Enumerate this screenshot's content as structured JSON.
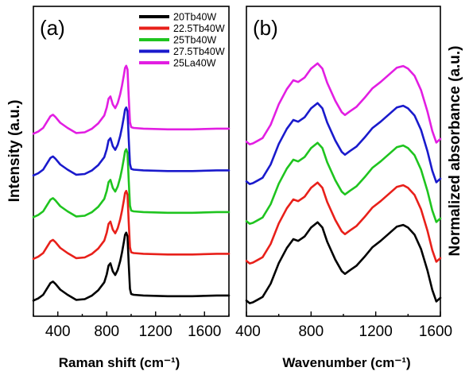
{
  "figure": {
    "ylabel_left": "Intensity (a.u.)",
    "ylabel_right": "Normalized absorbance (a.u.)"
  },
  "chart_data": [
    {
      "panel": "(a)",
      "type": "line",
      "xlabel": "Raman shift (cm⁻¹)",
      "xlim": [
        200,
        1800
      ],
      "xticks": [
        400,
        800,
        1200,
        1600
      ],
      "y_ticks_shown": false,
      "legend_position": "top-right",
      "series": [
        {
          "name": "20Tb40W",
          "color": "#000000",
          "offset": 0,
          "x": [
            200,
            240,
            280,
            310,
            340,
            360,
            380,
            420,
            480,
            550,
            620,
            680,
            730,
            780,
            800,
            815,
            830,
            850,
            870,
            890,
            910,
            925,
            940,
            950,
            960,
            970,
            980,
            990,
            1000,
            1020,
            1100,
            1300,
            1500,
            1700,
            1800
          ],
          "y": [
            4,
            7,
            12,
            20,
            28,
            30,
            27,
            19,
            12,
            5,
            6,
            11,
            18,
            29,
            40,
            52,
            55,
            44,
            39,
            46,
            58,
            70,
            84,
            94,
            97,
            92,
            55,
            20,
            13,
            12,
            11,
            10,
            10,
            11,
            11
          ]
        },
        {
          "name": "22.5Tb40W",
          "color": "#e8201a",
          "offset": 1,
          "x": [
            200,
            240,
            280,
            310,
            340,
            360,
            380,
            420,
            480,
            550,
            620,
            680,
            730,
            780,
            800,
            815,
            830,
            850,
            870,
            890,
            910,
            925,
            940,
            950,
            960,
            970,
            980,
            990,
            1000,
            1020,
            1100,
            1300,
            1500,
            1700,
            1800
          ],
          "y": [
            4,
            7,
            12,
            20,
            28,
            30,
            27,
            19,
            12,
            5,
            6,
            11,
            18,
            29,
            40,
            52,
            55,
            44,
            39,
            46,
            58,
            70,
            84,
            94,
            97,
            92,
            55,
            20,
            13,
            12,
            11,
            10,
            10,
            11,
            11
          ]
        },
        {
          "name": "25Tb40W",
          "color": "#1fc41f",
          "offset": 2,
          "x": [
            200,
            240,
            280,
            310,
            340,
            360,
            380,
            420,
            480,
            550,
            620,
            680,
            730,
            780,
            800,
            815,
            830,
            850,
            870,
            890,
            910,
            925,
            940,
            950,
            960,
            970,
            980,
            990,
            1000,
            1020,
            1100,
            1300,
            1500,
            1700,
            1800
          ],
          "y": [
            4,
            7,
            12,
            20,
            28,
            30,
            27,
            19,
            12,
            5,
            6,
            11,
            18,
            29,
            40,
            52,
            55,
            44,
            39,
            46,
            58,
            70,
            84,
            94,
            97,
            92,
            55,
            20,
            13,
            12,
            11,
            10,
            10,
            11,
            11
          ]
        },
        {
          "name": "27.5Tb40W",
          "color": "#1a1acc",
          "offset": 3,
          "x": [
            200,
            240,
            280,
            310,
            340,
            360,
            380,
            420,
            480,
            550,
            620,
            680,
            730,
            780,
            800,
            815,
            830,
            850,
            870,
            890,
            910,
            925,
            940,
            950,
            960,
            970,
            980,
            990,
            1000,
            1020,
            1100,
            1300,
            1500,
            1700,
            1800
          ],
          "y": [
            4,
            7,
            12,
            20,
            28,
            30,
            27,
            19,
            12,
            5,
            6,
            11,
            18,
            29,
            40,
            52,
            55,
            44,
            39,
            46,
            58,
            70,
            84,
            94,
            97,
            92,
            55,
            20,
            13,
            12,
            11,
            10,
            10,
            11,
            11
          ]
        },
        {
          "name": "25La40W",
          "color": "#e21ee2",
          "offset": 4,
          "x": [
            200,
            240,
            280,
            310,
            340,
            360,
            380,
            420,
            480,
            550,
            620,
            680,
            730,
            780,
            800,
            815,
            830,
            850,
            870,
            890,
            910,
            925,
            940,
            950,
            960,
            970,
            980,
            990,
            1000,
            1020,
            1100,
            1300,
            1500,
            1700,
            1800
          ],
          "y": [
            4,
            7,
            12,
            20,
            28,
            30,
            27,
            19,
            12,
            5,
            6,
            11,
            18,
            29,
            40,
            52,
            55,
            44,
            39,
            46,
            58,
            70,
            84,
            94,
            97,
            92,
            55,
            20,
            13,
            12,
            11,
            10,
            10,
            11,
            11
          ]
        }
      ]
    },
    {
      "panel": "(b)",
      "type": "line",
      "xlabel": "Wavenumber (cm⁻¹)",
      "xlim": [
        400,
        1600
      ],
      "xticks": [
        400,
        800,
        1200,
        1600
      ],
      "y_ticks_shown": false,
      "series": [
        {
          "name": "20Tb40W",
          "color": "#000000",
          "offset": 0,
          "x": [
            400,
            420,
            440,
            470,
            500,
            550,
            600,
            650,
            690,
            720,
            760,
            800,
            840,
            870,
            900,
            950,
            990,
            1010,
            1040,
            1080,
            1130,
            1180,
            1230,
            1280,
            1330,
            1370,
            1400,
            1440,
            1480,
            1520,
            1550,
            1575,
            1600
          ],
          "y": [
            6,
            3,
            4,
            7,
            10,
            25,
            48,
            65,
            75,
            73,
            78,
            88,
            94,
            88,
            72,
            52,
            39,
            36,
            40,
            45,
            55,
            66,
            73,
            81,
            89,
            91,
            88,
            80,
            64,
            40,
            18,
            5,
            9
          ]
        },
        {
          "name": "22.5Tb40W",
          "color": "#e8201a",
          "offset": 1,
          "x": [
            400,
            420,
            440,
            470,
            500,
            550,
            600,
            650,
            690,
            720,
            760,
            800,
            840,
            870,
            900,
            950,
            990,
            1010,
            1040,
            1080,
            1130,
            1180,
            1230,
            1280,
            1330,
            1370,
            1400,
            1440,
            1480,
            1520,
            1550,
            1575,
            1600
          ],
          "y": [
            6,
            3,
            4,
            7,
            10,
            25,
            48,
            65,
            75,
            73,
            78,
            88,
            94,
            88,
            72,
            52,
            39,
            36,
            40,
            45,
            55,
            66,
            73,
            81,
            89,
            91,
            88,
            80,
            64,
            40,
            18,
            5,
            9
          ]
        },
        {
          "name": "25Tb40W",
          "color": "#1fc41f",
          "offset": 2,
          "x": [
            400,
            420,
            440,
            470,
            500,
            550,
            600,
            650,
            690,
            720,
            760,
            800,
            840,
            870,
            900,
            950,
            990,
            1010,
            1040,
            1080,
            1130,
            1180,
            1230,
            1280,
            1330,
            1370,
            1400,
            1440,
            1480,
            1520,
            1550,
            1575,
            1600
          ],
          "y": [
            6,
            3,
            4,
            7,
            10,
            25,
            48,
            65,
            75,
            73,
            78,
            88,
            94,
            88,
            72,
            52,
            39,
            36,
            40,
            45,
            55,
            66,
            73,
            81,
            89,
            91,
            88,
            80,
            64,
            40,
            18,
            5,
            9
          ]
        },
        {
          "name": "27.5Tb40W",
          "color": "#1a1acc",
          "offset": 3,
          "x": [
            400,
            420,
            440,
            470,
            500,
            550,
            600,
            650,
            690,
            720,
            760,
            800,
            840,
            870,
            900,
            950,
            990,
            1010,
            1040,
            1080,
            1130,
            1180,
            1230,
            1280,
            1330,
            1370,
            1400,
            1440,
            1480,
            1520,
            1550,
            1575,
            1600
          ],
          "y": [
            6,
            3,
            4,
            7,
            10,
            25,
            48,
            65,
            75,
            73,
            78,
            88,
            94,
            88,
            72,
            52,
            39,
            36,
            40,
            45,
            55,
            66,
            73,
            81,
            89,
            91,
            88,
            80,
            64,
            40,
            18,
            5,
            9
          ]
        },
        {
          "name": "25La40W",
          "color": "#e21ee2",
          "offset": 4,
          "x": [
            400,
            420,
            440,
            470,
            500,
            550,
            600,
            650,
            690,
            720,
            760,
            800,
            840,
            870,
            900,
            950,
            990,
            1010,
            1040,
            1080,
            1130,
            1180,
            1230,
            1280,
            1330,
            1370,
            1400,
            1440,
            1480,
            1520,
            1550,
            1575,
            1600
          ],
          "y": [
            6,
            3,
            4,
            7,
            10,
            25,
            48,
            65,
            75,
            73,
            78,
            88,
            94,
            88,
            72,
            52,
            39,
            36,
            40,
            45,
            55,
            66,
            73,
            81,
            89,
            91,
            88,
            80,
            64,
            40,
            18,
            5,
            9
          ]
        }
      ]
    }
  ]
}
